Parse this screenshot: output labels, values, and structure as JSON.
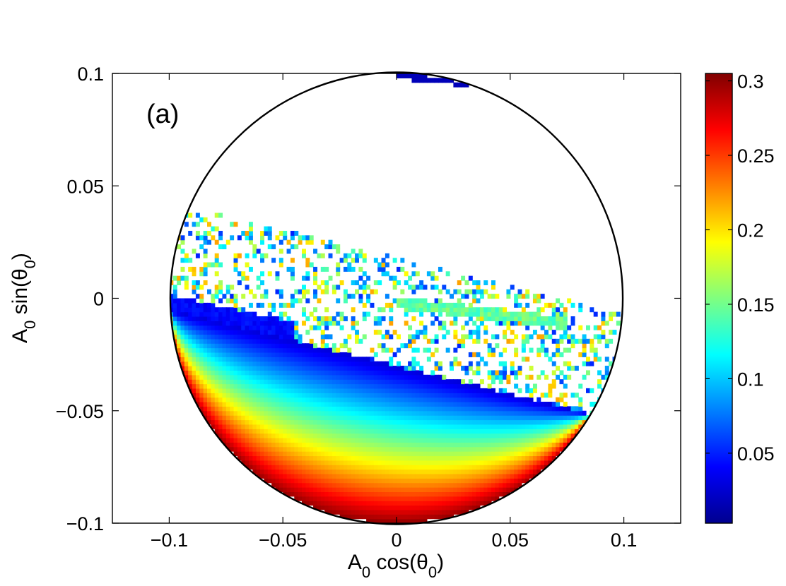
{
  "chart_data": {
    "type": "heatmap",
    "panel_label": "(a)",
    "xlabel": {
      "main": "A",
      "sub": "0",
      "func": " cos(θ",
      "sub2": "0",
      "close": ")"
    },
    "ylabel": {
      "main": "A",
      "sub": "0",
      "func": " sin(θ",
      "sub2": "0",
      "close": ")"
    },
    "xlim": [
      -0.125,
      0.125
    ],
    "ylim": [
      -0.1,
      0.1
    ],
    "x_ticks": [
      -0.1,
      -0.05,
      0,
      0.05,
      0.1
    ],
    "x_tick_labels": [
      "−0.1",
      "−0.05",
      "0",
      "0.05",
      "0.1"
    ],
    "y_ticks": [
      -0.1,
      -0.05,
      0,
      0.05,
      0.1
    ],
    "y_tick_labels": [
      "−0.1",
      "−0.05",
      "0",
      "0.05",
      "0.1"
    ],
    "boundary_circle_radius": 0.1,
    "colormap": "jet",
    "color_range": [
      0.003,
      0.305
    ],
    "colorbar_ticks": [
      0.05,
      0.1,
      0.15,
      0.2,
      0.25,
      0.3
    ],
    "colorbar_tick_labels": [
      "0.05",
      "0.1",
      "0.15",
      "0.2",
      "0.25",
      "0.3"
    ],
    "grid": false,
    "description_of_field": {
      "lower_band": "continuous region below line y = -0.03 - 0.25x; value rises from about 0.03 near the line to about 0.30 at the bottom of the disk",
      "upper_blue_band": "thin band near x in [-0.1,-0.045], y about -0.01 with value about 0.04",
      "scattered_region": "sparse scattered cells between the lower band and line y = 0.015 - 0.25x with values 0.05-0.22",
      "top_sliver": "thin dark blue sliver near x in [0,0.045], y about 0.1 with value about 0.02",
      "upper_cyan_streak": "faint streak near x in [0,0.07], y about -0.005 with value about 0.14"
    }
  }
}
